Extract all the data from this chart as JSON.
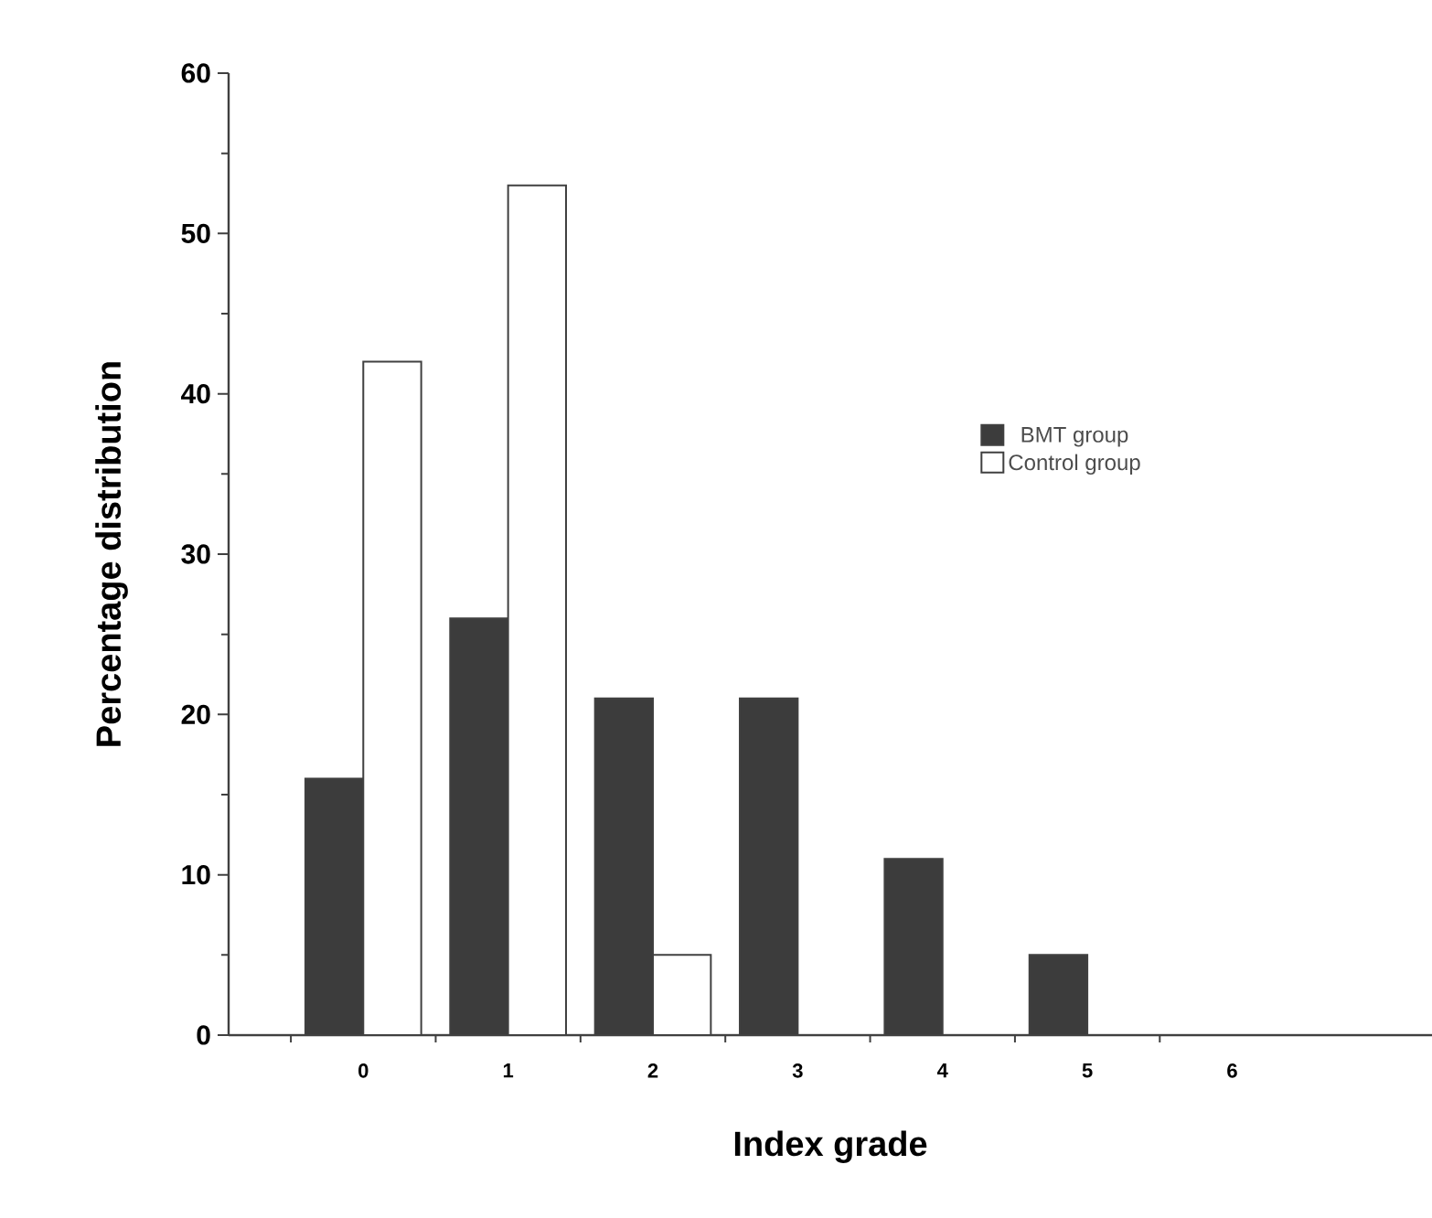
{
  "chart_data": {
    "type": "bar",
    "xlabel": "Index grade",
    "ylabel": "Percentage distribution",
    "categories": [
      "0",
      "1",
      "2",
      "3",
      "4",
      "5",
      "6"
    ],
    "series": [
      {
        "name": "BMT group",
        "color": "#3c3c3c",
        "values": [
          16,
          26,
          21,
          21,
          11,
          5,
          0
        ]
      },
      {
        "name": "Control group",
        "color": "#ffffff",
        "values": [
          42,
          53,
          5,
          0,
          0,
          0,
          0
        ]
      }
    ],
    "ylim": [
      0,
      60
    ],
    "yticks": [
      0,
      10,
      20,
      30,
      40,
      50,
      60
    ],
    "grid": false,
    "legend": "right"
  }
}
